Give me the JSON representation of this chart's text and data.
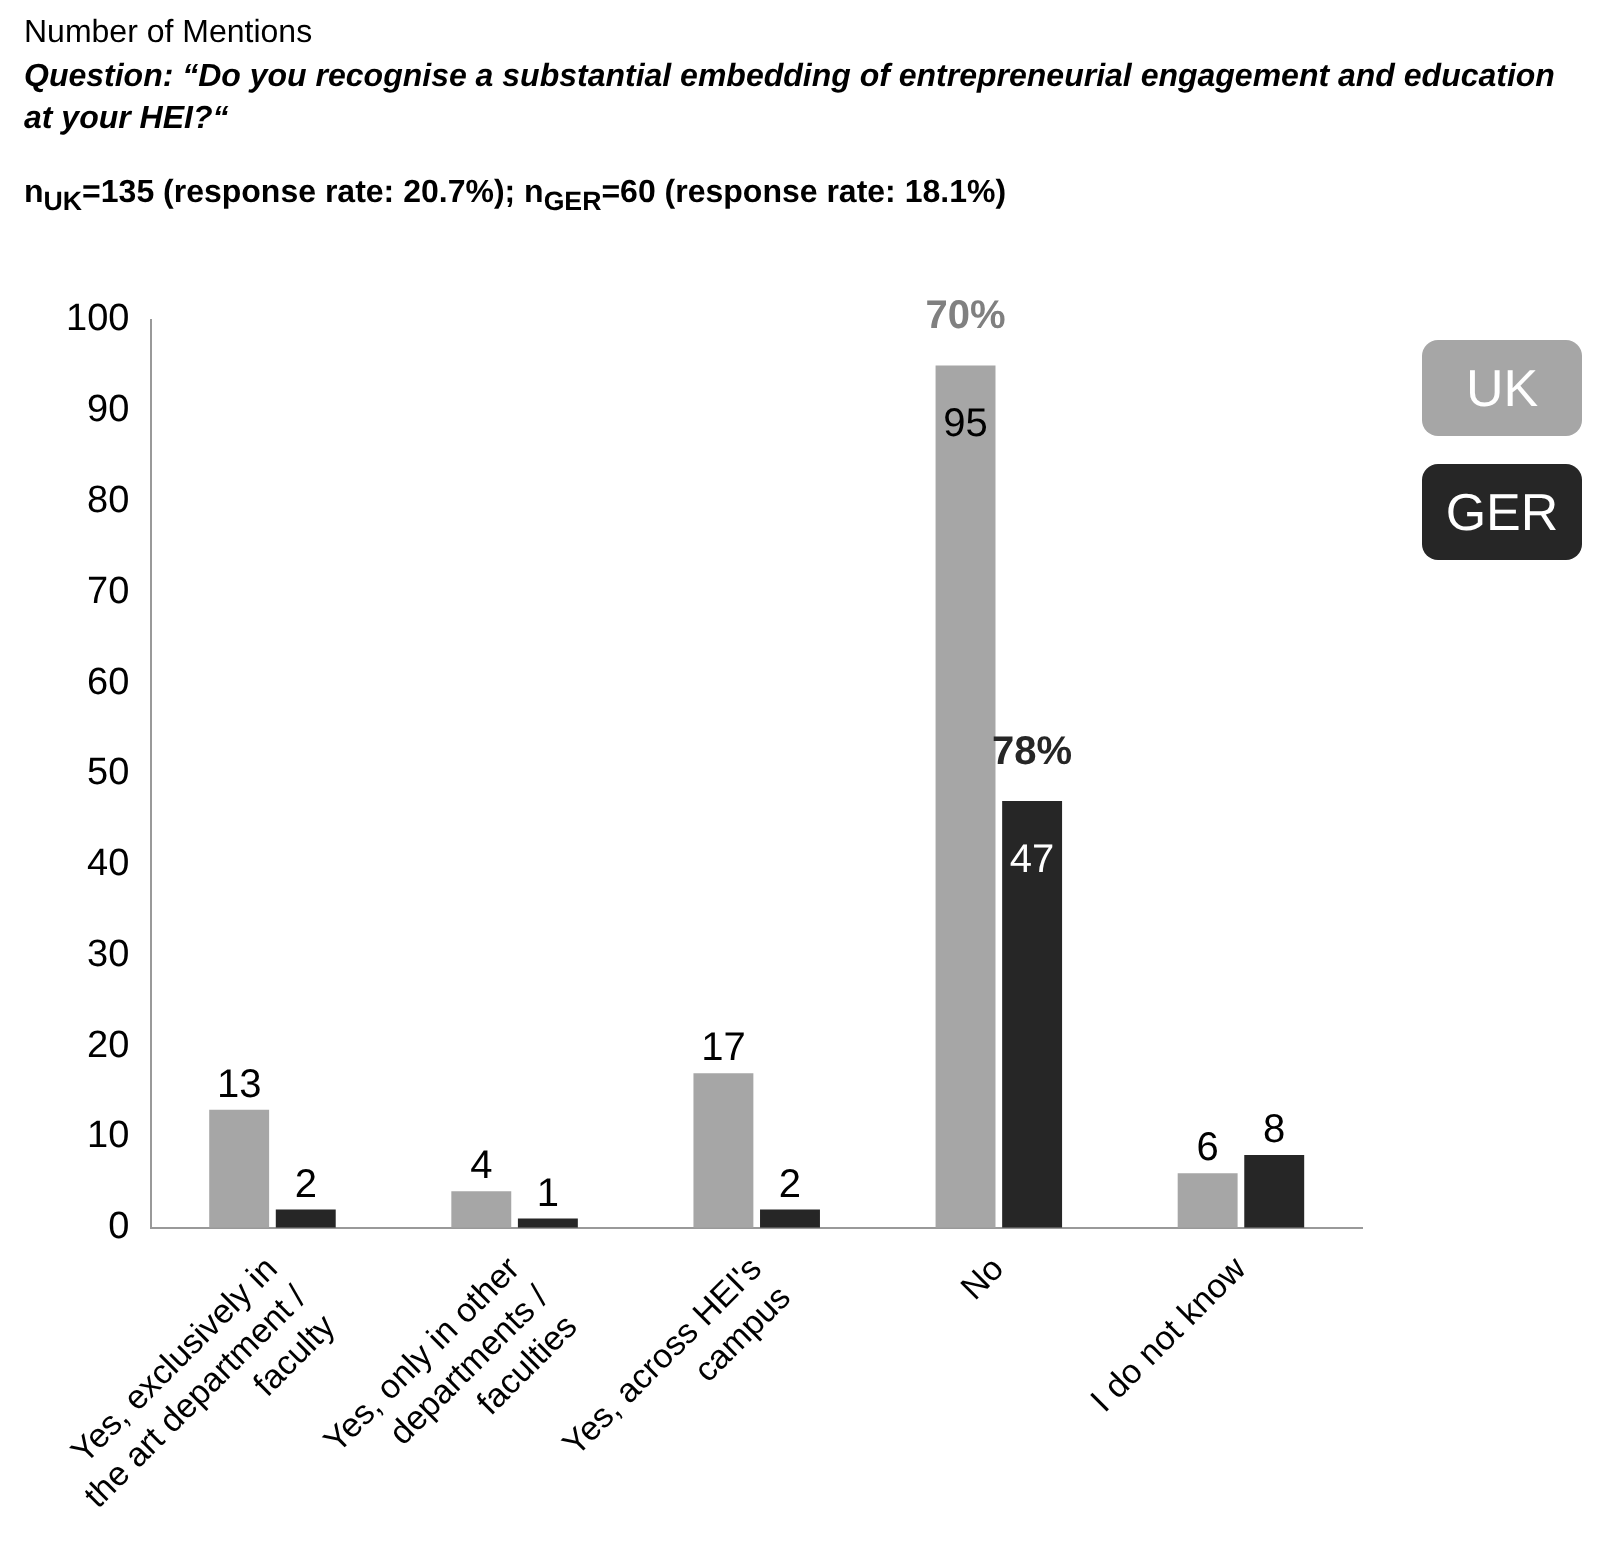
{
  "chart_data": {
    "type": "bar",
    "title": "Number  of Mentions",
    "subtitle": "Question: “Do you recognise a substantial embedding of entrepreneurial engagement and education at your HEI?“",
    "annotations": [
      "n$_{UK}$=135 (response rate: 20.7%); n$_{GER}$=60 (response rate: 18.1%)",
      {
        "text": "70%",
        "x": "No",
        "y": 95
      },
      {
        "text": "78%",
        "x": "No",
        "y": 47
      }
    ],
    "categories": [
      "Yes, exclusively in the art department / faculty",
      "Yes, only in other departments / faculties",
      "Yes, across HEI's campus",
      "No",
      "I do not know"
    ],
    "series": [
      {
        "name": "UK",
        "color": "#a6a6a6",
        "values": [
          13,
          4,
          17,
          95,
          6
        ]
      },
      {
        "name": "GER",
        "color": "#262626",
        "values": [
          2,
          1,
          2,
          47,
          8
        ]
      }
    ],
    "ylim": [
      0,
      100
    ],
    "yticks": [
      0,
      10,
      20,
      30,
      40,
      50,
      60,
      70,
      80,
      90,
      100
    ],
    "grid": false,
    "legend": "top right",
    "data_labels": true
  }
}
